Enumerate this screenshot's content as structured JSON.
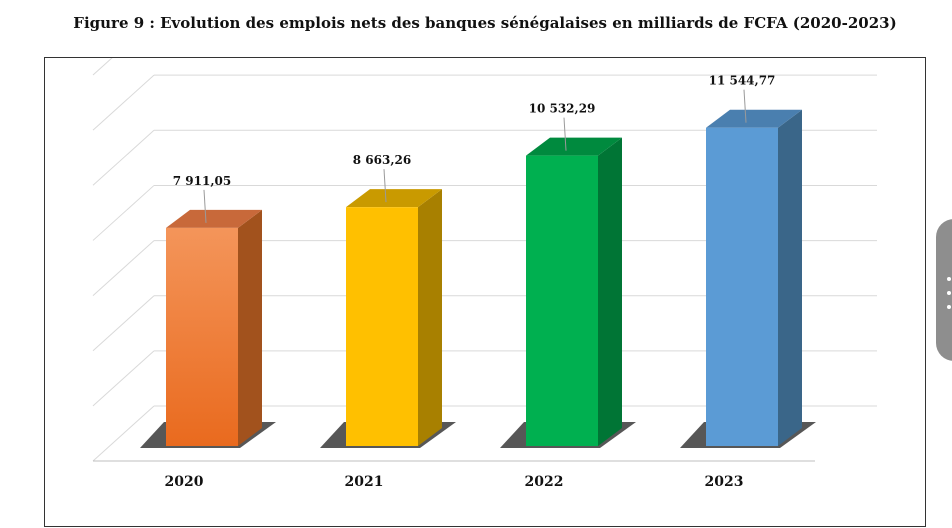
{
  "title": "Figure 9 : Evolution des emplois nets des banques sénégalaises en milliards de FCFA (2020-2023)",
  "chart_data": {
    "type": "bar",
    "categories": [
      "2020",
      "2021",
      "2022",
      "2023"
    ],
    "values": [
      7911.05,
      8663.26,
      10532.29,
      11544.77
    ],
    "data_labels": [
      "7 911,05",
      "8 663,26",
      "10 532,29",
      "11 544,77"
    ],
    "colors": [
      {
        "front_top": "#F4955A",
        "front_bottom": "#E96A1E",
        "side": "#A2521D",
        "top": "#C8693A"
      },
      {
        "front_top": "#FFC000",
        "front_bottom": "#FFC000",
        "side": "#A88000",
        "top": "#C99A00"
      },
      {
        "front_top": "#00B050",
        "front_bottom": "#00B050",
        "side": "#007535",
        "top": "#008A3E"
      },
      {
        "front_top": "#5B9BD5",
        "front_bottom": "#5B9BD5",
        "side": "#3A6689",
        "top": "#4A7FAF"
      }
    ],
    "ylim": [
      0,
      14000
    ],
    "grid": true,
    "xlabel": "",
    "ylabel": ""
  }
}
